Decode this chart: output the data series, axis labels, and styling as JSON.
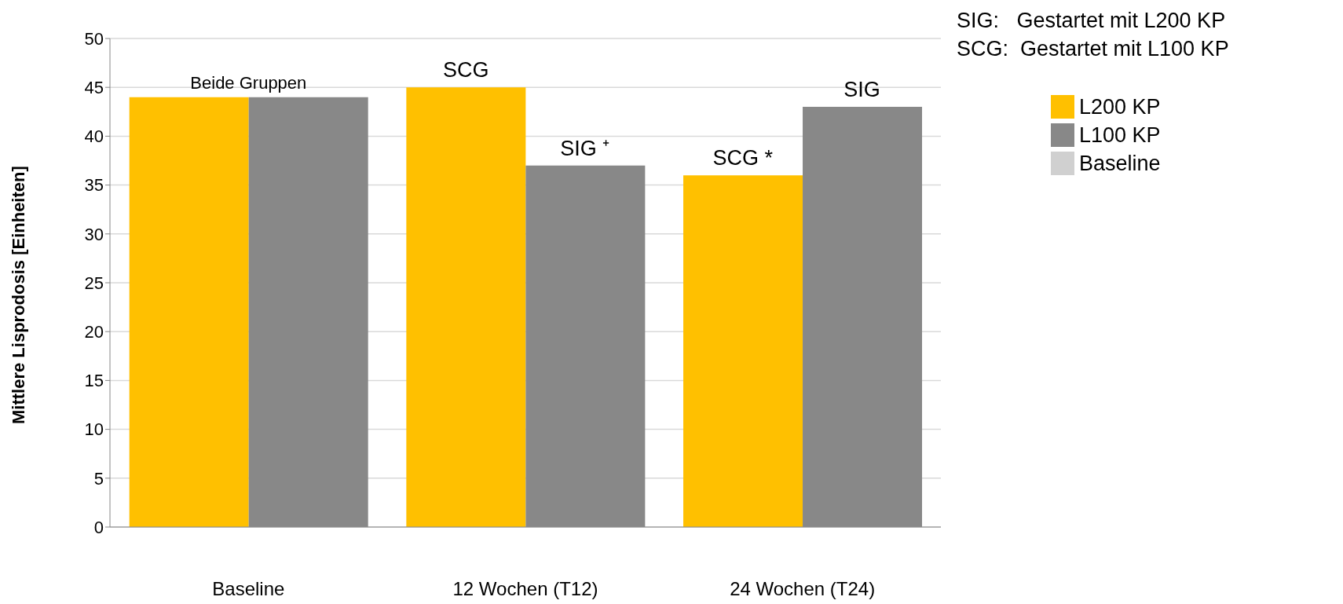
{
  "chart_data": {
    "type": "bar",
    "ylabel": "Mittlere Lisprodosis [Einheiten]",
    "categories": [
      "Baseline",
      "12 Wochen (T12)",
      "24 Wochen (T24)"
    ],
    "series": [
      {
        "name": "L200 KP",
        "color": "#ffc000",
        "values": [
          44,
          45,
          36
        ]
      },
      {
        "name": "L100 KP",
        "color": "#888888",
        "values": [
          44,
          37,
          43
        ]
      },
      {
        "name": "Baseline",
        "color": "#d0d0d0",
        "values": [
          null,
          null,
          null
        ]
      }
    ],
    "ylim": [
      0,
      50
    ],
    "yticks": [
      0,
      5,
      10,
      15,
      20,
      25,
      30,
      35,
      40,
      45,
      50
    ],
    "grid": "y",
    "legend": "top right",
    "annotations": [
      "SIG:   Gestartet mit L200 KP",
      "SCG:  Gestartet mit L100 KP",
      {
        "text": "Beide Gruppen",
        "x": "Baseline",
        "y": 44
      },
      {
        "text": "SCG",
        "x": "12 Wochen (T12)",
        "y": 45
      },
      {
        "text": "SIG ⁺",
        "x": "12 Wochen (T12)",
        "y": 37
      },
      {
        "text": "SCG *",
        "x": "24 Wochen (T24)",
        "y": 36
      },
      {
        "text": "SIG",
        "x": "24 Wochen (T24)",
        "y": 43
      }
    ]
  }
}
